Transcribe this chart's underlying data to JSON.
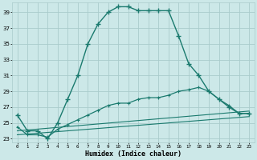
{
  "title": "",
  "xlabel": "Humidex (Indice chaleur)",
  "bg_color": "#cce8e8",
  "grid_color": "#aacccc",
  "line_color": "#1a7a6e",
  "xlim": [
    -0.5,
    23.5
  ],
  "ylim": [
    22.5,
    40.2
  ],
  "yticks": [
    23,
    25,
    27,
    29,
    31,
    33,
    35,
    37,
    39
  ],
  "xticks": [
    0,
    1,
    2,
    3,
    4,
    5,
    6,
    7,
    8,
    9,
    10,
    11,
    12,
    13,
    14,
    15,
    16,
    17,
    18,
    19,
    20,
    21,
    22,
    23
  ],
  "line1_x": [
    0,
    1,
    2,
    3,
    4,
    5,
    6,
    7,
    8,
    9,
    10,
    11,
    12,
    13,
    14,
    15,
    16,
    17,
    18,
    19,
    20,
    21,
    22,
    23
  ],
  "line1_y": [
    26,
    24,
    24,
    23,
    25,
    28,
    31,
    35,
    37.5,
    39,
    39.7,
    39.7,
    39.2,
    39.2,
    39.2,
    39.2,
    36,
    32.5,
    31,
    29,
    28,
    27,
    26.2,
    26.2
  ],
  "line2_x": [
    0,
    1,
    2,
    3,
    4,
    5,
    6,
    7,
    8,
    9,
    10,
    11,
    12,
    13,
    14,
    15,
    16,
    17,
    18,
    19,
    20,
    21,
    22,
    23
  ],
  "line2_y": [
    24.5,
    23.5,
    23.5,
    23.2,
    24.2,
    24.8,
    25.4,
    26.0,
    26.6,
    27.2,
    27.5,
    27.5,
    28.0,
    28.2,
    28.2,
    28.5,
    29.0,
    29.2,
    29.5,
    29.0,
    28.0,
    27.2,
    26.2,
    26.2
  ],
  "line3_x": [
    0,
    23
  ],
  "line3_y": [
    24.0,
    26.5
  ],
  "line4_x": [
    0,
    23
  ],
  "line4_y": [
    23.5,
    25.8
  ]
}
